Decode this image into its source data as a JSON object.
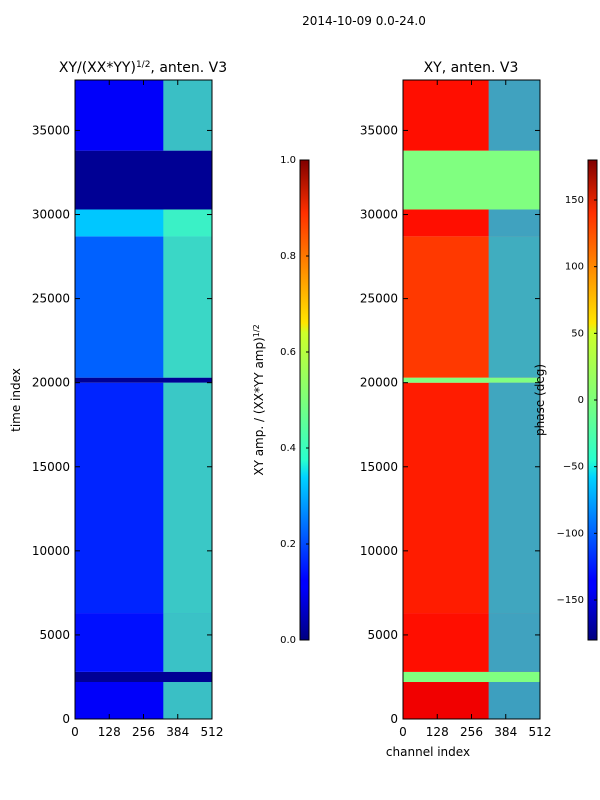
{
  "suptitle": "2014-10-09 0.0-24.0",
  "chart_data": [
    {
      "type": "heatmap",
      "title": "XY/(XX*YY)^1/2, anten. V3",
      "xlabel": "",
      "ylabel": "time index",
      "xlim": [
        0,
        512
      ],
      "ylim": [
        0,
        38000
      ],
      "xticks": [
        "0",
        "128",
        "256",
        "384",
        "512"
      ],
      "xtick_values": [
        0,
        128,
        256,
        384,
        512
      ],
      "yticks": [
        "0",
        "5000",
        "10000",
        "15000",
        "20000",
        "25000",
        "30000",
        "35000"
      ],
      "ytick_values": [
        0,
        5000,
        10000,
        15000,
        20000,
        25000,
        30000,
        35000
      ],
      "colorbar": {
        "label": "XY amp. / (XX*YY amp)^1/2",
        "range": [
          0.0,
          1.0
        ],
        "ticks": [
          "0.0",
          "0.2",
          "0.4",
          "0.6",
          "0.8",
          "1.0"
        ],
        "tick_values": [
          0.0,
          0.2,
          0.4,
          0.6,
          0.8,
          1.0
        ],
        "colormap": "jet"
      },
      "bands": [
        {
          "t0": 0,
          "t1": 2200,
          "value": 0.12
        },
        {
          "t0": 2200,
          "t1": 2800,
          "value": 0.02
        },
        {
          "t0": 2800,
          "t1": 6300,
          "value": 0.14
        },
        {
          "t0": 6300,
          "t1": 20000,
          "value": 0.16
        },
        {
          "t0": 20000,
          "t1": 20300,
          "value": 0.02
        },
        {
          "t0": 20300,
          "t1": 28700,
          "value": 0.22
        },
        {
          "t0": 28700,
          "t1": 30300,
          "value": 0.32
        },
        {
          "t0": 30300,
          "t1": 33800,
          "value": 0.02
        },
        {
          "t0": 33800,
          "t1": 38000,
          "value": 0.12
        }
      ],
      "hot_region": {
        "ch0": 330,
        "ch1": 512,
        "value": 0.45
      }
    },
    {
      "type": "heatmap",
      "title": "XY, anten. V3",
      "xlabel": "channel index",
      "ylabel": "",
      "xlim": [
        0,
        512
      ],
      "ylim": [
        0,
        38000
      ],
      "xticks": [
        "0",
        "128",
        "256",
        "384",
        "512"
      ],
      "xtick_values": [
        0,
        128,
        256,
        384,
        512
      ],
      "yticks": [
        "0",
        "5000",
        "10000",
        "15000",
        "20000",
        "25000",
        "30000",
        "35000"
      ],
      "ytick_values": [
        0,
        5000,
        10000,
        15000,
        20000,
        25000,
        30000,
        35000
      ],
      "colorbar": {
        "label": "phase (deg)",
        "range": [
          -180,
          180
        ],
        "ticks": [
          "−150",
          "−100",
          "−50",
          "0",
          "50",
          "100",
          "150"
        ],
        "tick_values": [
          -150,
          -100,
          -50,
          0,
          50,
          100,
          150
        ],
        "colormap": "jet"
      },
      "bands": [
        {
          "t0": 0,
          "t1": 2200,
          "value": 140
        },
        {
          "t0": 2200,
          "t1": 2800,
          "value": 0
        },
        {
          "t0": 2800,
          "t1": 6300,
          "value": 130
        },
        {
          "t0": 6300,
          "t1": 20000,
          "value": 125
        },
        {
          "t0": 20000,
          "t1": 20300,
          "value": 0
        },
        {
          "t0": 20300,
          "t1": 28700,
          "value": 115
        },
        {
          "t0": 28700,
          "t1": 30300,
          "value": 130
        },
        {
          "t0": 30300,
          "t1": 33800,
          "value": 0
        },
        {
          "t0": 33800,
          "t1": 38000,
          "value": 130
        }
      ],
      "hot_region": {
        "ch0": 320,
        "ch1": 512,
        "value": -60
      }
    }
  ]
}
